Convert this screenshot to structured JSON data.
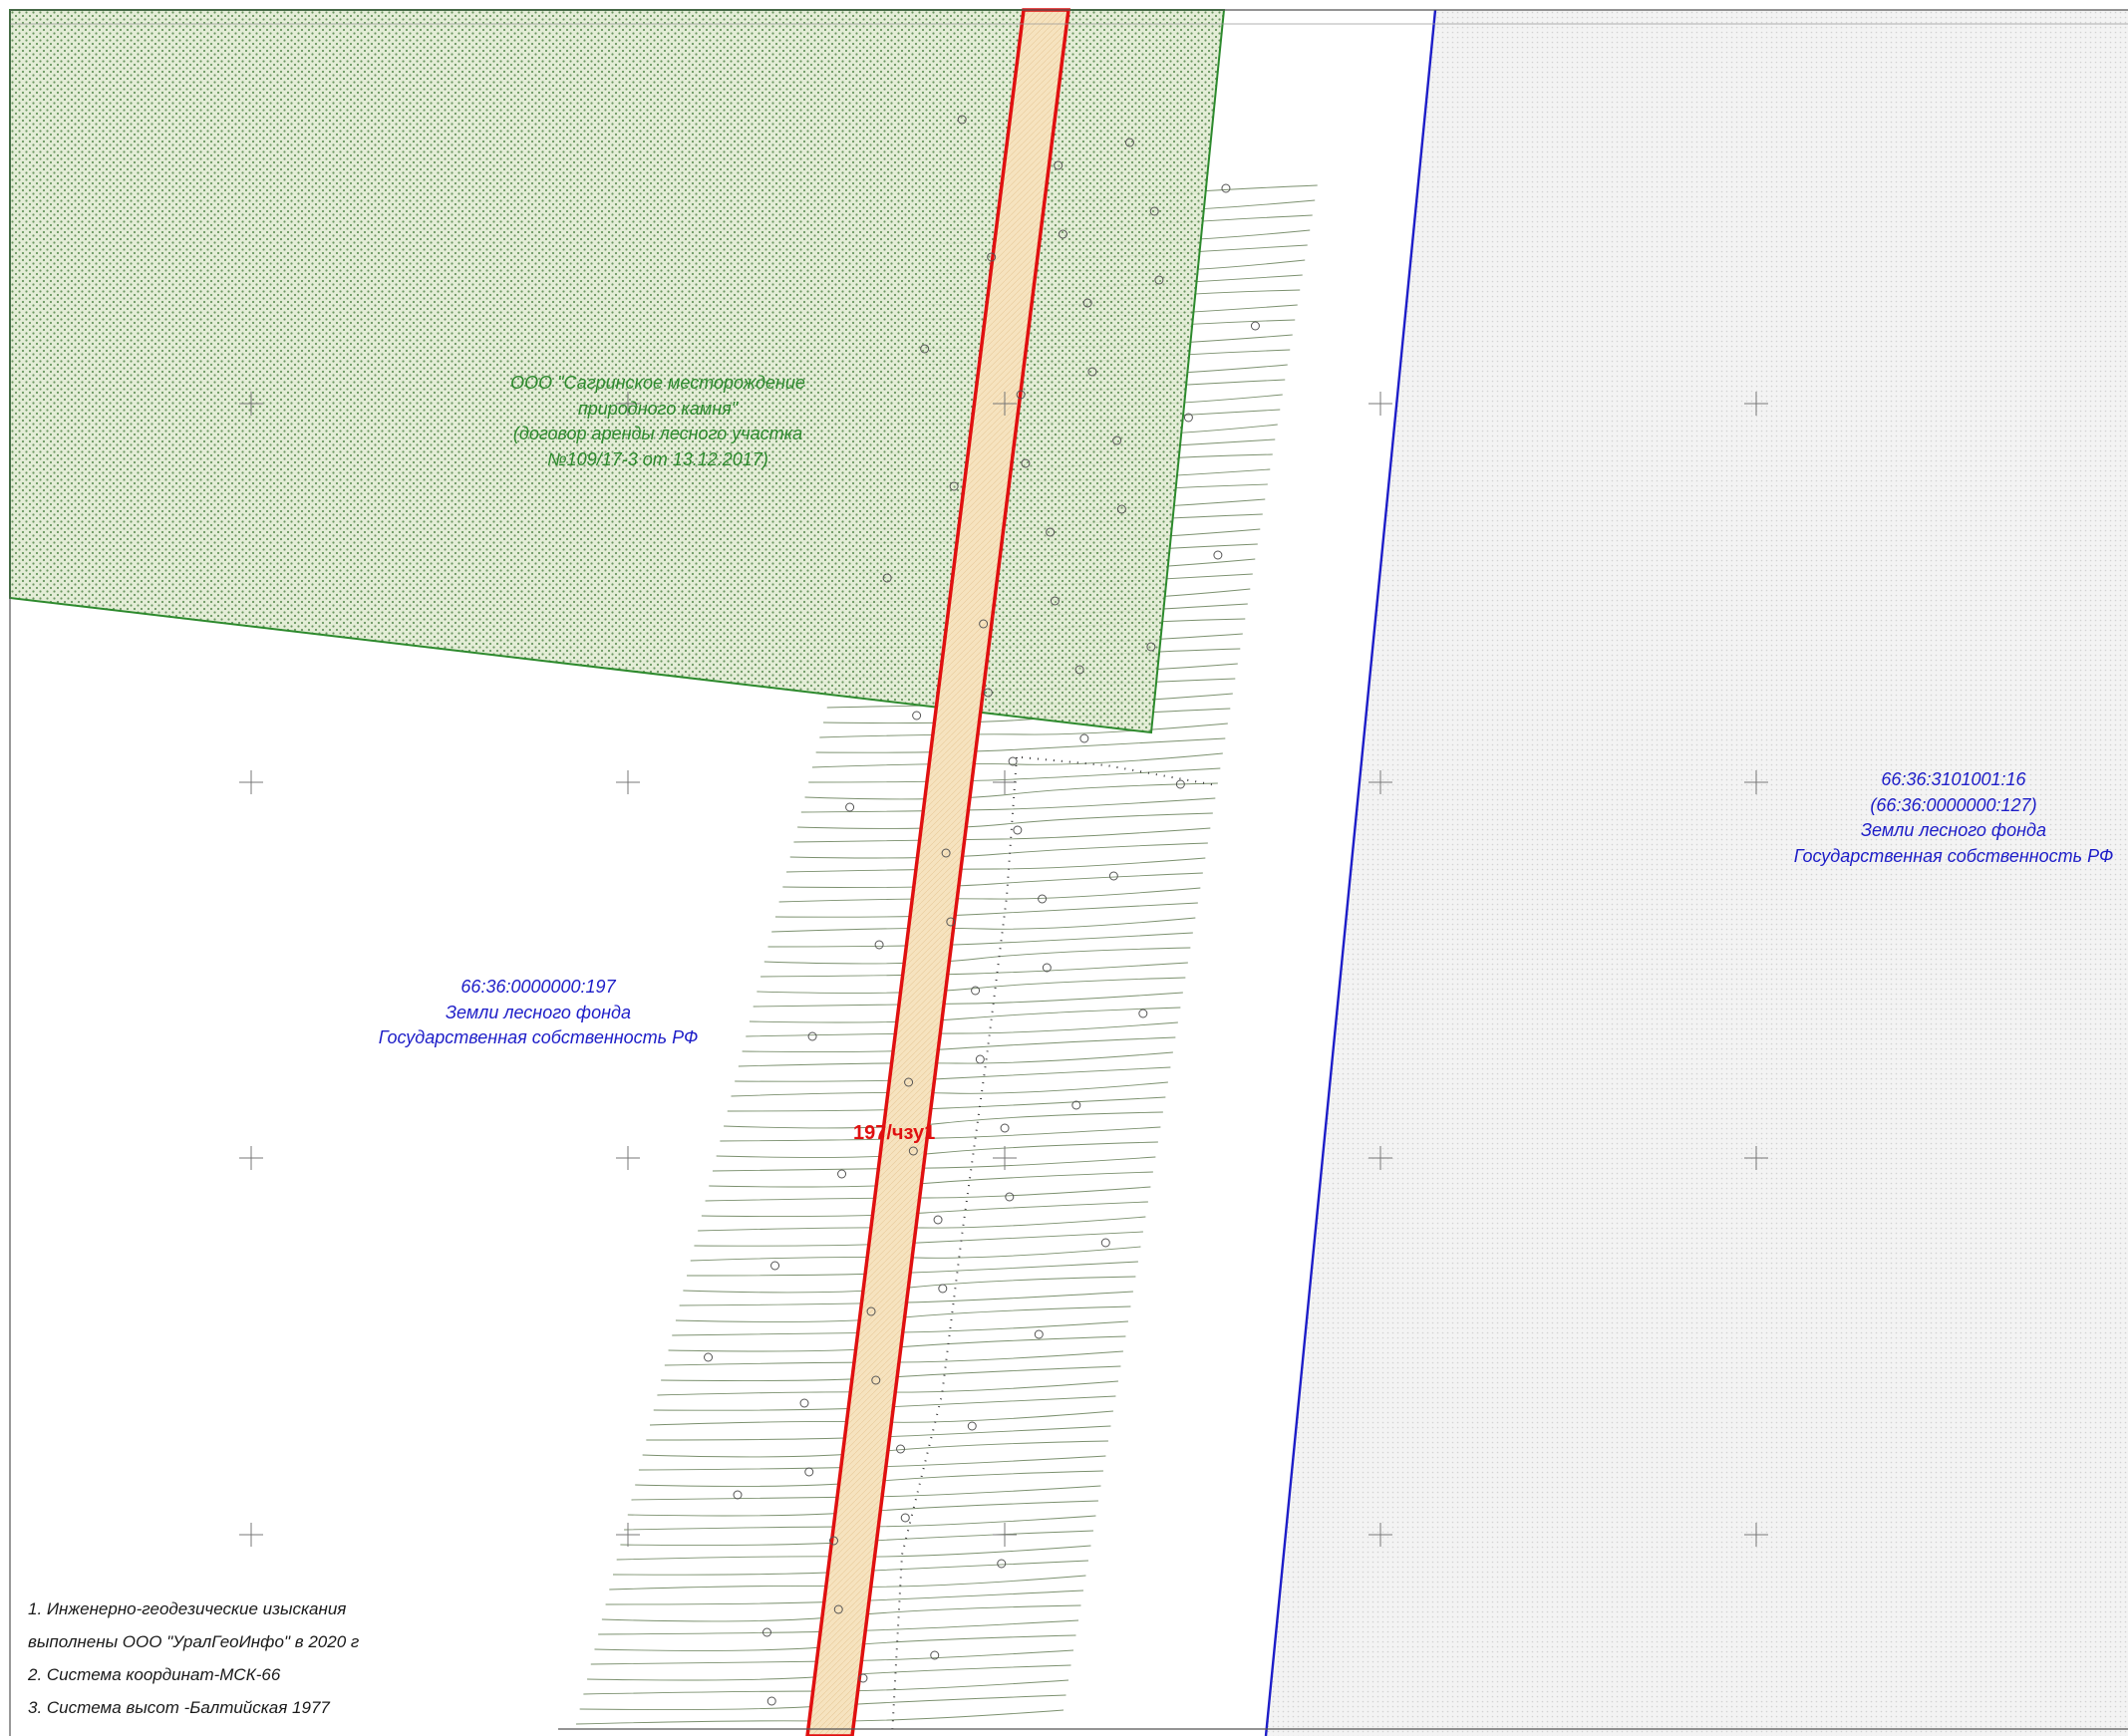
{
  "map": {
    "lease_area": {
      "lines": [
        "ООО \"Сагринское месторождение",
        "природного камня\"",
        "(договор аренды лесного участка",
        "№109/17-3 от 13.12.2017)"
      ],
      "color": "#2d8a2d",
      "fill_color": "#e2ecd4"
    },
    "parcel_197": {
      "lines": [
        "66:36:0000000:197",
        "Земли лесного фонда",
        "Государственная собственность РФ"
      ],
      "color": "#1d1dc8"
    },
    "parcel_16": {
      "lines": [
        "66:36:3101001:16",
        "(66:36:0000000:127)",
        "Земли лесного фонда",
        "Государственная собственность РФ"
      ],
      "color": "#1d1dc8",
      "fill_color": "#f1f1f1"
    },
    "easement_zone": {
      "label": "197/чзу1",
      "border_color": "#e01010",
      "fill_color": "#f6e3bf"
    },
    "boundary_color": "#1d1dc8",
    "contour_color": "#4f6b3d"
  },
  "notes": [
    "1. Инженерно-геодезические изыскания",
    "выполнены ООО \"УралГеоИнфо\" в 2020 г",
    "2. Система координат-МСК-66",
    "3. Система высот -Балтийская 1977"
  ]
}
